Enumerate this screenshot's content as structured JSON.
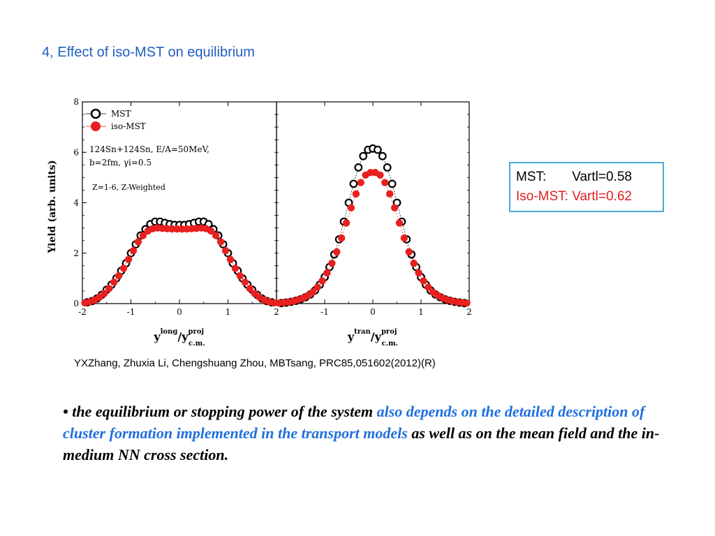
{
  "slide": {
    "title": "4, Effect of iso-MST on equilibrium",
    "citation": "YXZhang, Zhuxia Li, Chengshuang Zhou, MBTsang, PRC85,051602(2012)(R)",
    "bullet": {
      "marker": "•",
      "part1": "the equilibrium or stopping power of the system ",
      "part2": "also depends on the detailed description of cluster formation implemented in the transport models",
      "part3": " as well as on the mean field and the in-medium NN cross section."
    },
    "infobox": {
      "mst_label": "MST:       Vartl=0.58",
      "iso_label": "Iso-MST: Vartl=0.62",
      "mst_color": "#000000",
      "iso_color": "#e02020",
      "border_color": "#4aa8d8"
    }
  },
  "chart_data": [
    {
      "type": "scatter",
      "panel": "left",
      "ylabel": "Yield (arb. units)",
      "xlabel": "ylong/yprojc.m.",
      "xlim": [
        -2,
        2
      ],
      "ylim": [
        0,
        8
      ],
      "xticks": [
        "-2",
        "-1",
        "0",
        "1",
        "2"
      ],
      "yticks": [
        "0",
        "2",
        "4",
        "6",
        "8"
      ],
      "legend": {
        "placement": "top-left",
        "entries": [
          "MST",
          "iso-MST"
        ]
      },
      "annotation": {
        "line1": "124Sn+124Sn, E/A=50MeV,",
        "line2": "b=2fm, γi=0.5",
        "line3": "Z=1-6, Z-Weighted"
      },
      "series": [
        {
          "name": "MST",
          "marker": "open",
          "color": "#000000",
          "x": [
            -1.9,
            -1.8,
            -1.7,
            -1.6,
            -1.5,
            -1.4,
            -1.3,
            -1.2,
            -1.1,
            -1.0,
            -0.9,
            -0.8,
            -0.7,
            -0.6,
            -0.5,
            -0.4,
            -0.3,
            -0.2,
            -0.1,
            0.0,
            0.1,
            0.2,
            0.3,
            0.4,
            0.5,
            0.6,
            0.7,
            0.8,
            0.9,
            1.0,
            1.1,
            1.2,
            1.3,
            1.4,
            1.5,
            1.6,
            1.7,
            1.8,
            1.9
          ],
          "y": [
            0.05,
            0.1,
            0.2,
            0.35,
            0.55,
            0.75,
            1.0,
            1.3,
            1.6,
            2.0,
            2.35,
            2.7,
            2.95,
            3.15,
            3.25,
            3.25,
            3.2,
            3.15,
            3.12,
            3.12,
            3.12,
            3.15,
            3.2,
            3.25,
            3.25,
            3.15,
            2.95,
            2.7,
            2.35,
            2.0,
            1.6,
            1.3,
            1.0,
            0.75,
            0.55,
            0.35,
            0.2,
            0.1,
            0.05
          ]
        },
        {
          "name": "iso-MST",
          "marker": "filled",
          "color": "#e82020",
          "x": [
            -1.95,
            -1.85,
            -1.75,
            -1.65,
            -1.55,
            -1.45,
            -1.35,
            -1.25,
            -1.15,
            -1.05,
            -0.95,
            -0.85,
            -0.75,
            -0.65,
            -0.55,
            -0.45,
            -0.35,
            -0.25,
            -0.15,
            -0.05,
            0.05,
            0.15,
            0.25,
            0.35,
            0.45,
            0.55,
            0.65,
            0.75,
            0.85,
            0.95,
            1.05,
            1.15,
            1.25,
            1.35,
            1.45,
            1.55,
            1.65,
            1.75,
            1.85,
            1.95
          ],
          "y": [
            0.03,
            0.07,
            0.14,
            0.25,
            0.4,
            0.6,
            0.85,
            1.1,
            1.4,
            1.75,
            2.1,
            2.45,
            2.7,
            2.88,
            2.97,
            3.0,
            2.98,
            2.97,
            2.96,
            2.96,
            2.96,
            2.96,
            2.97,
            2.98,
            3.0,
            2.97,
            2.88,
            2.7,
            2.45,
            2.1,
            1.75,
            1.4,
            1.1,
            0.85,
            0.6,
            0.4,
            0.25,
            0.14,
            0.07,
            0.03
          ]
        }
      ]
    },
    {
      "type": "scatter",
      "panel": "right",
      "xlabel": "ytran/yprojc.m.",
      "xlim": [
        -2,
        2
      ],
      "ylim": [
        0,
        8
      ],
      "xticks": [
        "-2",
        "-1",
        "0",
        "1",
        "2"
      ],
      "series": [
        {
          "name": "MST",
          "marker": "open",
          "color": "#000000",
          "x": [
            -1.9,
            -1.8,
            -1.7,
            -1.6,
            -1.5,
            -1.4,
            -1.3,
            -1.2,
            -1.1,
            -1.0,
            -0.9,
            -0.8,
            -0.7,
            -0.6,
            -0.5,
            -0.4,
            -0.3,
            -0.2,
            -0.1,
            0.0,
            0.1,
            0.2,
            0.3,
            0.4,
            0.5,
            0.6,
            0.7,
            0.8,
            0.9,
            1.0,
            1.1,
            1.2,
            1.3,
            1.4,
            1.5,
            1.6,
            1.7,
            1.8,
            1.9
          ],
          "y": [
            0.02,
            0.04,
            0.07,
            0.11,
            0.17,
            0.25,
            0.36,
            0.52,
            0.75,
            1.05,
            1.45,
            1.95,
            2.55,
            3.25,
            4.0,
            4.75,
            5.4,
            5.85,
            6.1,
            6.15,
            6.1,
            5.85,
            5.4,
            4.75,
            4.0,
            3.25,
            2.55,
            1.95,
            1.45,
            1.05,
            0.75,
            0.52,
            0.36,
            0.25,
            0.17,
            0.11,
            0.07,
            0.04,
            0.02
          ]
        },
        {
          "name": "iso-MST",
          "marker": "filled",
          "color": "#e82020",
          "x": [
            -1.95,
            -1.85,
            -1.75,
            -1.65,
            -1.55,
            -1.45,
            -1.35,
            -1.25,
            -1.15,
            -1.05,
            -0.95,
            -0.85,
            -0.75,
            -0.65,
            -0.55,
            -0.45,
            -0.35,
            -0.25,
            -0.15,
            -0.05,
            0.05,
            0.15,
            0.25,
            0.35,
            0.45,
            0.55,
            0.65,
            0.75,
            0.85,
            0.95,
            1.05,
            1.15,
            1.25,
            1.35,
            1.45,
            1.55,
            1.65,
            1.75,
            1.85,
            1.95
          ],
          "y": [
            0.02,
            0.04,
            0.06,
            0.1,
            0.15,
            0.22,
            0.32,
            0.45,
            0.65,
            0.9,
            1.22,
            1.6,
            2.05,
            2.6,
            3.2,
            3.8,
            4.35,
            4.8,
            5.1,
            5.2,
            5.2,
            5.1,
            4.8,
            4.35,
            3.8,
            3.2,
            2.6,
            2.05,
            1.6,
            1.22,
            0.9,
            0.65,
            0.45,
            0.32,
            0.22,
            0.15,
            0.1,
            0.06,
            0.04,
            0.02
          ]
        }
      ]
    }
  ]
}
